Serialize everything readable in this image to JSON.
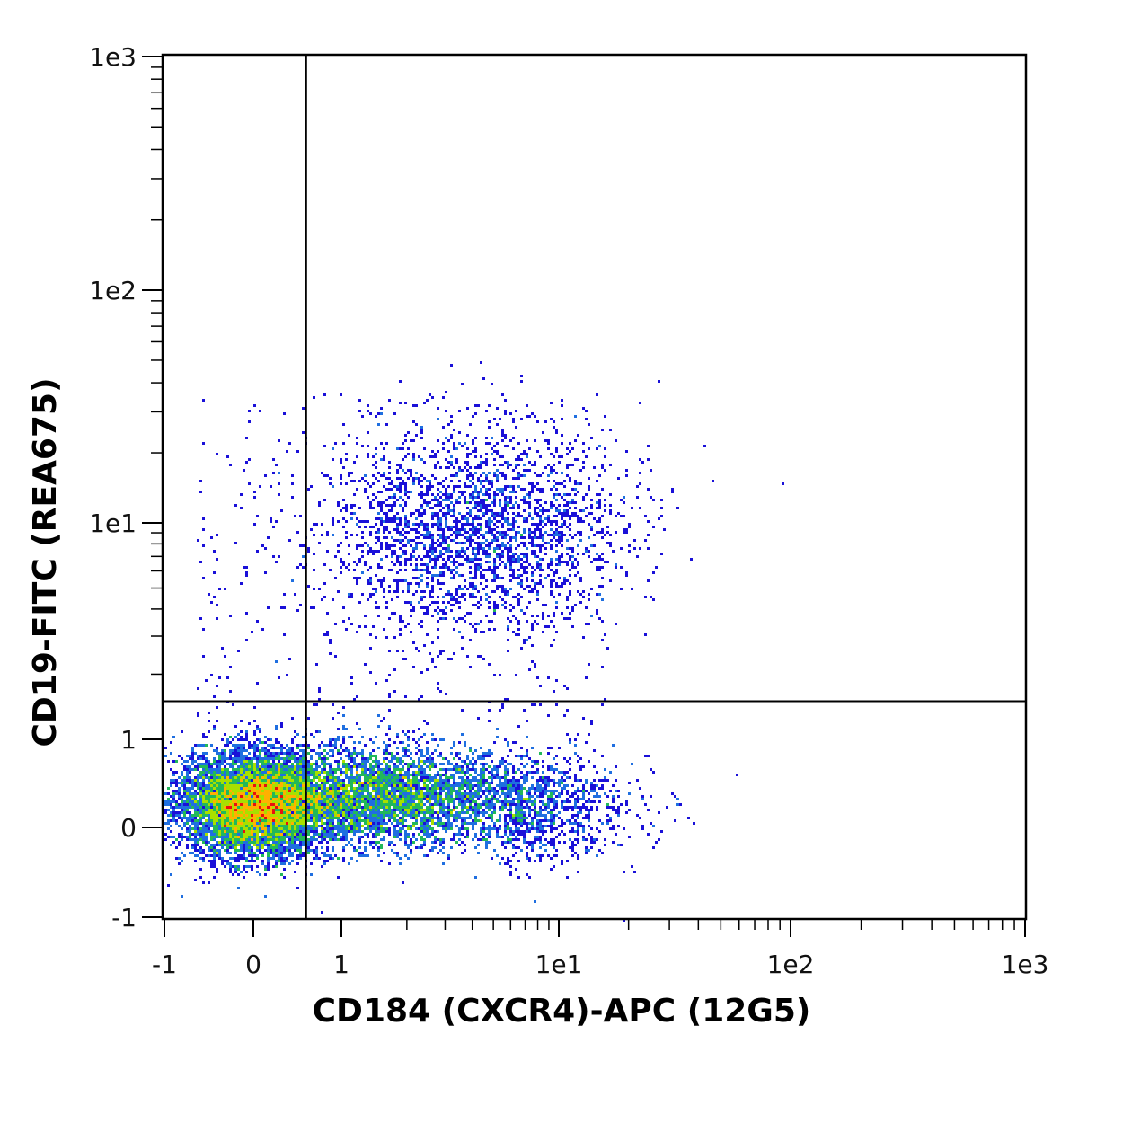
{
  "chart_data": {
    "type": "scatter",
    "subtype": "flow-cytometry-density-dot-plot",
    "xlabel": "CD184 (CXCR4)-APC (12G5)",
    "ylabel": "CD19-FITC (REA675)",
    "x_scale": "biexponential (linear near zero, logarithmic above ~1)",
    "y_scale": "biexponential (linear near zero, logarithmic above ~1)",
    "xlim": [
      -1,
      1000
    ],
    "ylim": [
      -1,
      1000
    ],
    "x_ticks": [
      {
        "value": -1,
        "label": "-1"
      },
      {
        "value": 0,
        "label": "0"
      },
      {
        "value": 1,
        "label": "1"
      },
      {
        "value": 10,
        "label": "1e1"
      },
      {
        "value": 100,
        "label": "1e2"
      },
      {
        "value": 1000,
        "label": "1e3"
      }
    ],
    "y_ticks": [
      {
        "value": -1,
        "label": "-1"
      },
      {
        "value": 0,
        "label": "0"
      },
      {
        "value": 1,
        "label": "1"
      },
      {
        "value": 10,
        "label": "1e1"
      },
      {
        "value": 100,
        "label": "1e2"
      },
      {
        "value": 1000,
        "label": "1e3"
      }
    ],
    "quadrant_gate": {
      "x": 0.6,
      "y": 1.5
    },
    "grid": false,
    "color_scale": [
      "#1a10d8",
      "#1f6fe0",
      "#22b85a",
      "#a8e000",
      "#ffb000",
      "#e81010"
    ],
    "populations": [
      {
        "x_center": 0.0,
        "y_center": 0.25,
        "x_spread": 0.35,
        "y_spread": 0.28,
        "relative_density": 1.0
      },
      {
        "x_center": 1.5,
        "y_center": 0.35,
        "x_spread": 1.3,
        "y_spread": 0.3,
        "relative_density": 0.95
      },
      {
        "x_center": 6.0,
        "y_center": 9.0,
        "x_spread": 3.5,
        "y_spread": 4.0,
        "relative_density": 0.25
      }
    ]
  }
}
